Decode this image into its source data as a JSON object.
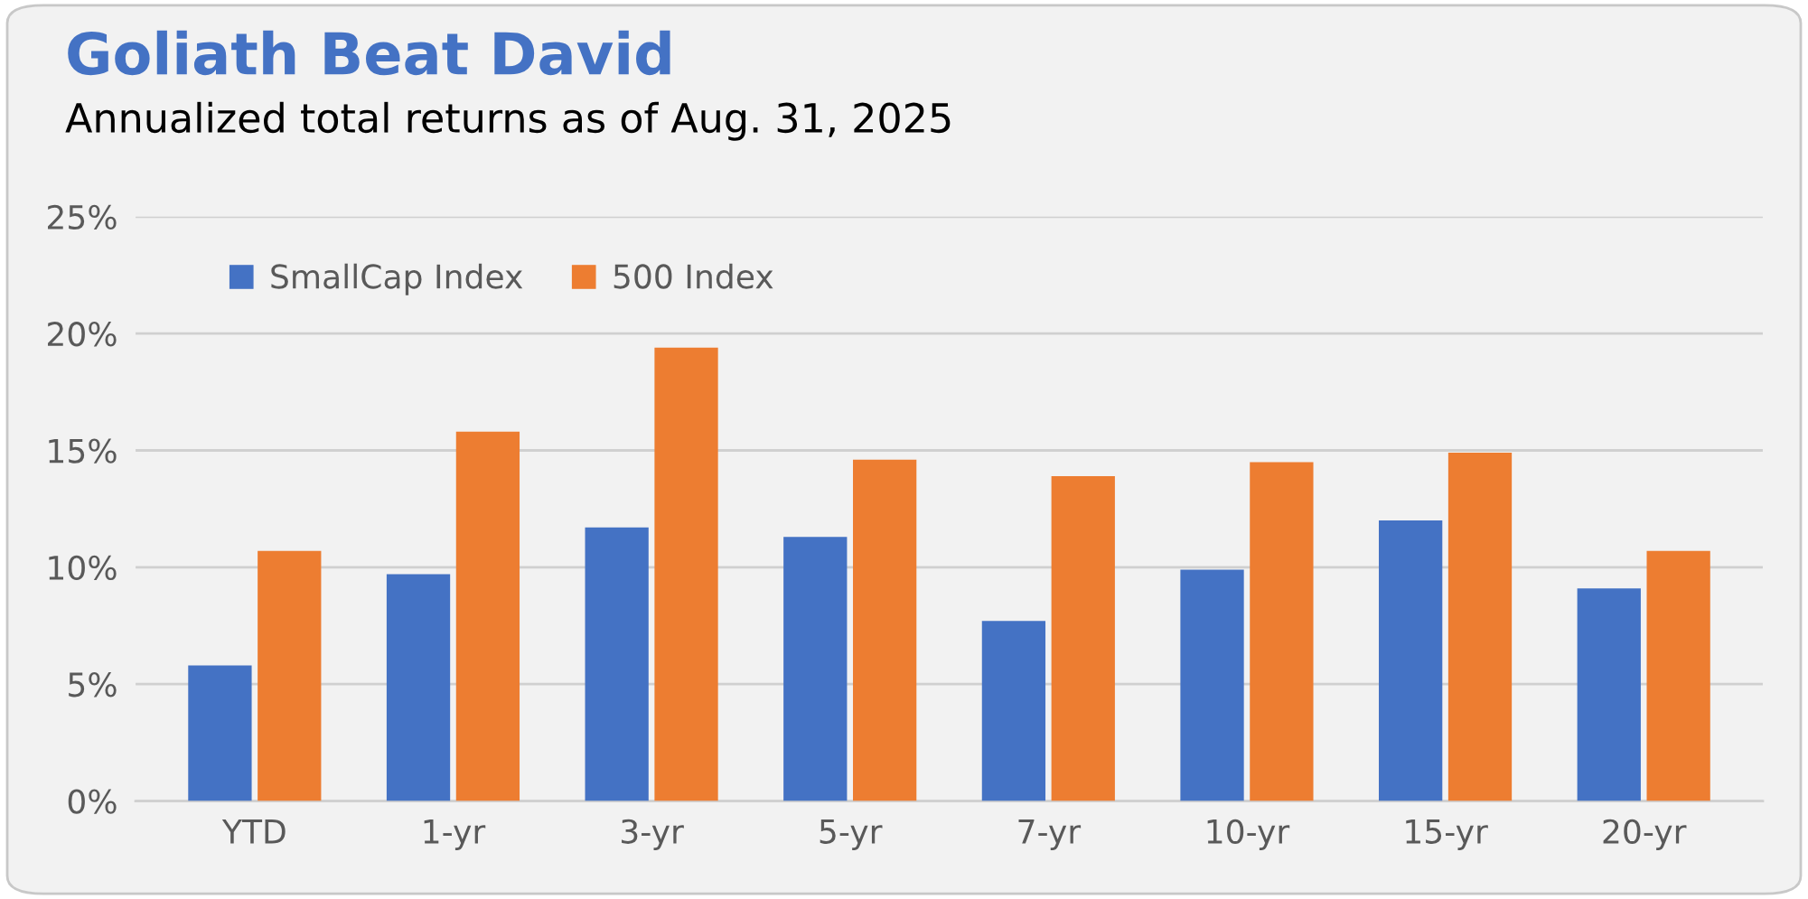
{
  "chart_data": {
    "type": "bar",
    "title": "Goliath Beat David",
    "subtitle": "Annualized total returns as of Aug. 31, 2025",
    "categories": [
      "YTD",
      "1-yr",
      "3-yr",
      "5-yr",
      "7-yr",
      "10-yr",
      "15-yr",
      "20-yr"
    ],
    "series": [
      {
        "name": "SmallCap Index",
        "color": "#4472c4",
        "values": [
          5.8,
          9.7,
          11.7,
          11.3,
          7.7,
          9.9,
          12.0,
          9.1
        ]
      },
      {
        "name": "500 Index",
        "color": "#ed7d31",
        "values": [
          10.7,
          15.8,
          19.4,
          14.6,
          13.9,
          14.5,
          14.9,
          10.7
        ]
      }
    ],
    "ylim": [
      0,
      25
    ],
    "yticks": [
      {
        "value": 0,
        "label": "0%"
      },
      {
        "value": 5,
        "label": "5%"
      },
      {
        "value": 10,
        "label": "10%"
      },
      {
        "value": 15,
        "label": "15%"
      },
      {
        "value": 20,
        "label": "20%"
      },
      {
        "value": 25,
        "label": "25%"
      }
    ],
    "grid": "y",
    "legend": "top left"
  }
}
